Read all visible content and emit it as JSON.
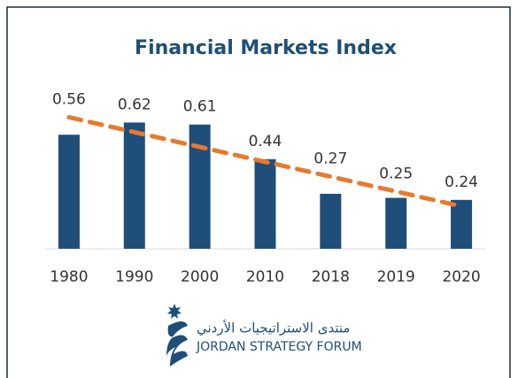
{
  "chart_data": {
    "type": "bar",
    "title": "Financial Markets Index",
    "categories": [
      "1980",
      "1990",
      "2000",
      "2010",
      "2018",
      "2019",
      "2020"
    ],
    "values": [
      0.56,
      0.62,
      0.61,
      0.44,
      0.27,
      0.25,
      0.24
    ],
    "color": "#1f4e79",
    "ylim": [
      0,
      0.7
    ],
    "grid": false,
    "trendline": "linear",
    "trendline_color": "#e87a30"
  },
  "logo": {
    "arabic": "منتدى الاستراتيجيات الأردني",
    "english": "JORDAN STRATEGY FORUM"
  }
}
